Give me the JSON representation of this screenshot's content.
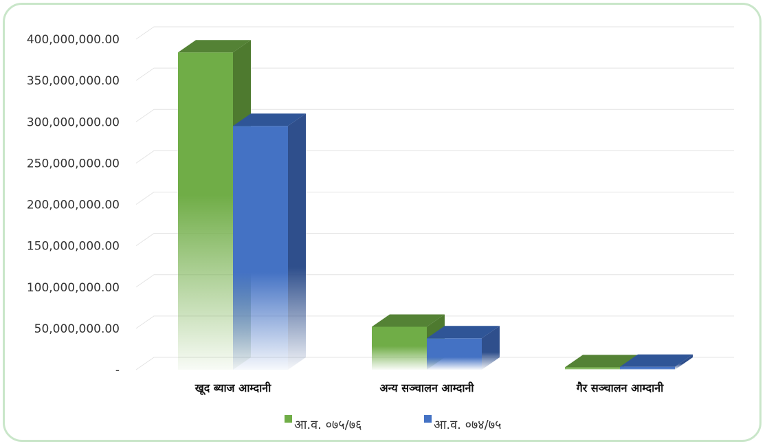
{
  "chart_data": {
    "type": "bar",
    "style": "3d-clustered-column",
    "categories": [
      "खूद ब्याज आम्दानी",
      "अन्य सञ्चालन आम्दानी",
      "गैर सञ्चालन आम्दानी"
    ],
    "series": [
      {
        "name": "आ.व. ०७५/७६",
        "color": "#70ad47",
        "values": [
          384000000,
          52000000,
          3000000
        ]
      },
      {
        "name": "आ.व. ०७४/७५",
        "color": "#4472c4",
        "values": [
          295000000,
          38000000,
          3500000
        ]
      }
    ],
    "y_ticks": [
      "-",
      "50,000,000.00",
      "100,000,000.00",
      "150,000,000.00",
      "200,000,000.00",
      "250,000,000.00",
      "300,000,000.00",
      "350,000,000.00",
      "400,000,000.00"
    ],
    "ylim": [
      0,
      400000000
    ],
    "grid": true,
    "legend_position": "bottom"
  }
}
